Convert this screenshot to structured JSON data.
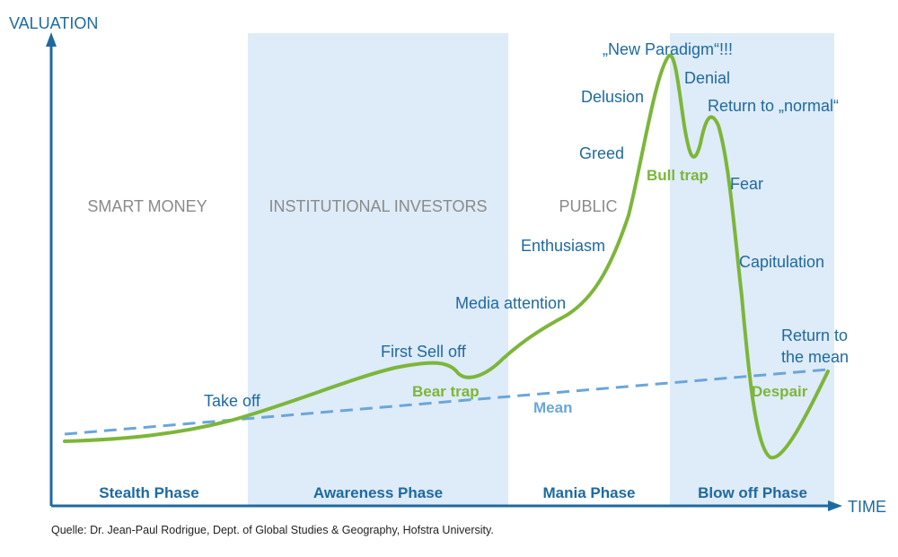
{
  "axes": {
    "y_label": "VALUATION",
    "x_label": "TIME"
  },
  "groups": {
    "smart_money": "SMART MONEY",
    "institutional": "INSTITUTIONAL INVESTORS",
    "public": "PUBLIC"
  },
  "phases": {
    "stealth": "Stealth Phase",
    "awareness": "Awareness Phase",
    "mania": "Mania Phase",
    "blowoff": "Blow off Phase"
  },
  "annotations": {
    "take_off": "Take off",
    "first_sell_off": "First Sell off",
    "bear_trap": "Bear trap",
    "media_attention": "Media attention",
    "enthusiasm": "Enthusiasm",
    "greed": "Greed",
    "delusion": "Delusion",
    "new_paradigm": "„New Paradigm“!!!",
    "denial": "Denial",
    "return_normal": "Return to „normal“",
    "bull_trap": "Bull trap",
    "fear": "Fear",
    "capitulation": "Capitulation",
    "return_mean_1": "Return to",
    "return_mean_2": "the mean",
    "despair": "Despair",
    "mean": "Mean"
  },
  "source": "Quelle: Dr. Jean-Paul Rodrigue, Dept. of Global Studies & Geography, Hofstra University.",
  "colors": {
    "axis": "#1e6aa0",
    "curve": "#7cb63a",
    "mean_line": "#6aa6da",
    "phase_band": "#deebf8"
  }
}
